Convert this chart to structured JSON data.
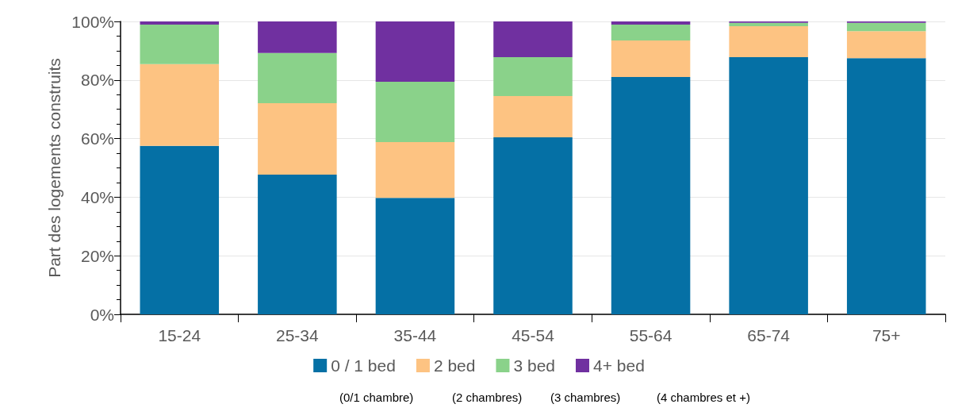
{
  "chart_data": {
    "type": "bar",
    "stacked": true,
    "ylabel": "Part des logements construits",
    "categories": [
      "15-24",
      "25-34",
      "35-44",
      "45-54",
      "55-64",
      "65-74",
      "75+"
    ],
    "series": [
      {
        "name": "0 / 1 bed",
        "color": "#0570a5",
        "values": [
          57.5,
          47.7,
          39.8,
          60.4,
          81.0,
          87.8,
          87.5
        ]
      },
      {
        "name": "2 bed",
        "color": "#fdc382",
        "values": [
          27.9,
          24.4,
          19.0,
          14.1,
          12.5,
          10.6,
          9.2
        ]
      },
      {
        "name": "3 bed",
        "color": "#8ad28a",
        "values": [
          13.5,
          17.1,
          20.6,
          13.3,
          5.4,
          1.1,
          2.8
        ]
      },
      {
        "name": "4+ bed",
        "color": "#7030a0",
        "values": [
          1.1,
          10.8,
          20.6,
          12.2,
          1.1,
          0.5,
          0.5
        ]
      }
    ],
    "ylim": [
      0,
      100
    ],
    "yticks": [
      {
        "value": 0,
        "label": "0%"
      },
      {
        "value": 20,
        "label": "20%"
      },
      {
        "value": 40,
        "label": "40%"
      },
      {
        "value": 60,
        "label": "60%"
      },
      {
        "value": 80,
        "label": "80%"
      },
      {
        "value": 100,
        "label": "100%"
      }
    ],
    "grid": "y",
    "legend": "bottom",
    "annotations": [
      "(0/1 chambre)",
      "(2 chambres)",
      "(3 chambres)",
      "(4 chambres et +)"
    ]
  }
}
